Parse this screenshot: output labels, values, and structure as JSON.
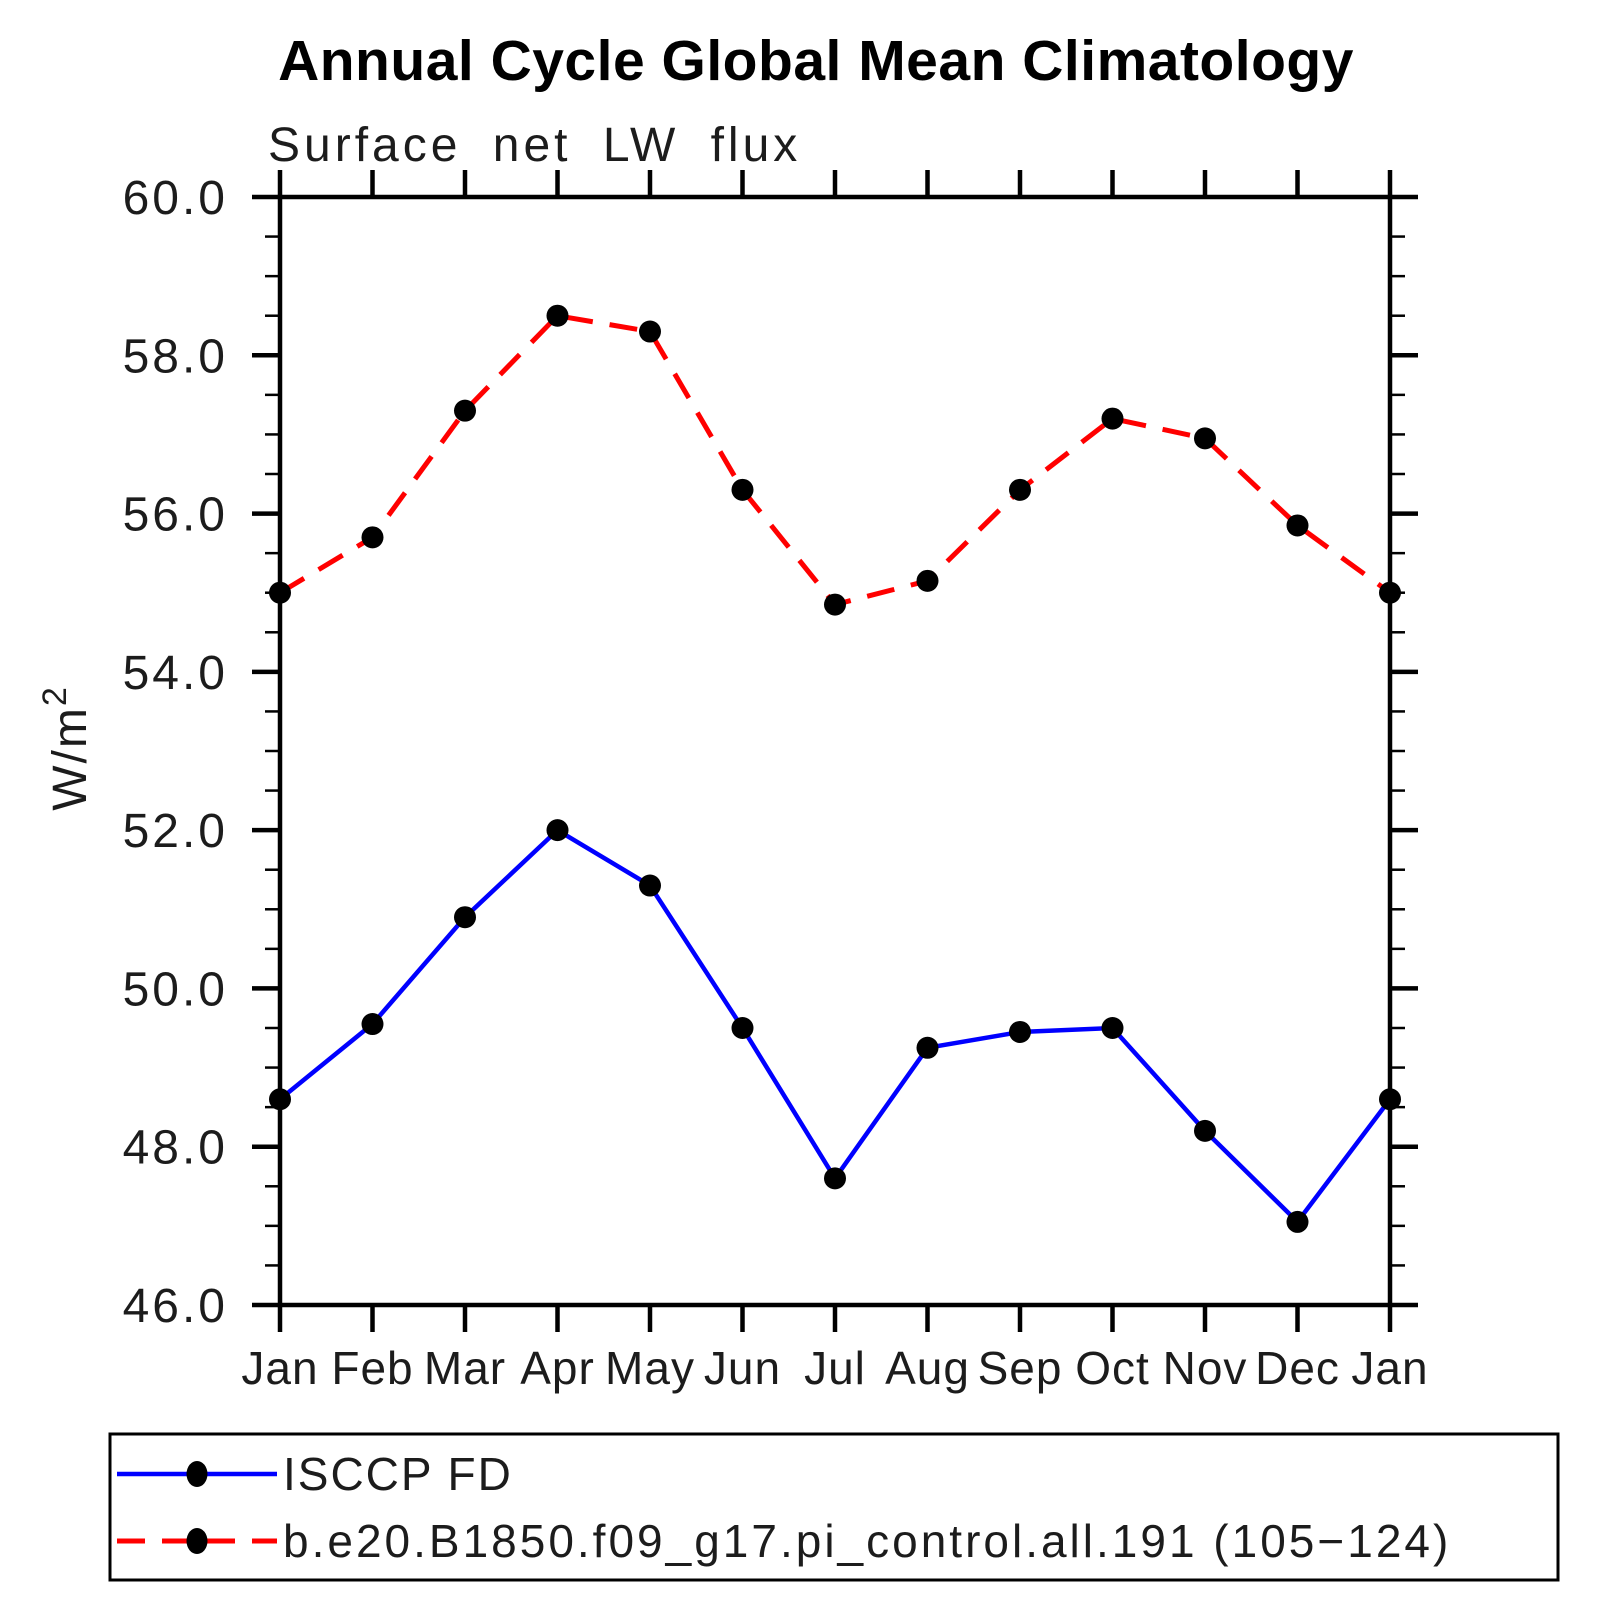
{
  "chart_data": {
    "type": "line",
    "title": "Annual Cycle Global Mean Climatology",
    "subtitle": "Surface net LW flux",
    "ylabel_base": "W/m",
    "ylabel_superscript": "2",
    "ylabel_text": "W/m2",
    "categories": [
      "Jan",
      "Feb",
      "Mar",
      "Apr",
      "May",
      "Jun",
      "Jul",
      "Aug",
      "Sep",
      "Oct",
      "Nov",
      "Dec",
      "Jan"
    ],
    "ylim": [
      46.0,
      60.0
    ],
    "ytick_major_interval": 2.0,
    "ytick_minor_interval": 0.5,
    "ytick_labels": [
      "60.0",
      "58.0",
      "56.0",
      "54.0",
      "52.0",
      "50.0",
      "48.0",
      "46.0"
    ],
    "grid": false,
    "legend_position": "bottom",
    "axis_color": "#000000",
    "marker_color": "#000000",
    "series": [
      {
        "name": "ISCCP FD",
        "color": "#0000ff",
        "line_style": "solid",
        "marker": "filled-circle",
        "values": [
          48.6,
          49.55,
          50.9,
          52.0,
          51.3,
          49.5,
          47.6,
          49.25,
          49.45,
          49.5,
          48.2,
          47.05,
          48.6
        ]
      },
      {
        "name": "b.e20.B1850.f09_g17.pi_control.all.191 (105−124)",
        "color": "#ff0000",
        "line_style": "dashed",
        "marker": "filled-circle",
        "values": [
          55.0,
          55.7,
          57.3,
          58.5,
          58.3,
          56.3,
          54.85,
          55.15,
          56.3,
          57.2,
          56.95,
          55.85,
          55.0
        ]
      }
    ]
  }
}
